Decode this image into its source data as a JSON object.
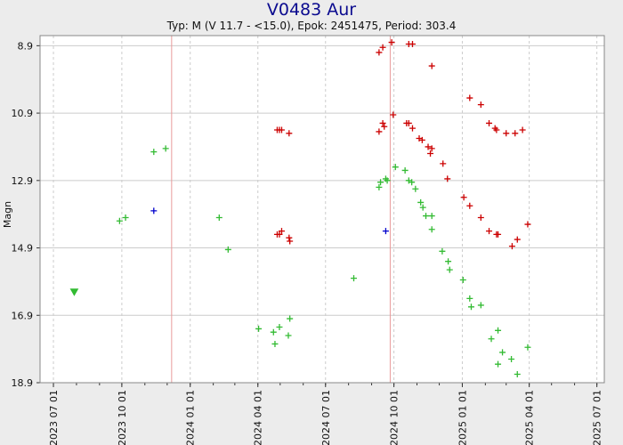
{
  "title": "V0483 Aur",
  "subtitle": "Typ: M (V 11.7 - <15.0), Epok: 2451475, Period: 303.4",
  "chart_data": {
    "type": "scatter",
    "ylabel": "Magn",
    "xlabel": "",
    "ylim": [
      8.6,
      18.9
    ],
    "y_inverted": true,
    "yticks": [
      8.9,
      10.9,
      12.9,
      14.9,
      16.9,
      18.9
    ],
    "xticks": [
      "2023 07 01",
      "2023 10 01",
      "2024 01 01",
      "2024 04 01",
      "2024 07 01",
      "2024 10 01",
      "2025 01 01",
      "2025 04 01",
      "2025 07 01"
    ],
    "xlim": [
      "2023-06-13",
      "2025-07-11"
    ],
    "grid": true,
    "vlines": [
      "2023-12-07",
      "2024-09-26"
    ],
    "colors": {
      "red": "#cc0000",
      "green": "#33bb33",
      "blue": "#0000cc",
      "vline": "#e89a9a",
      "grid": "#cccccc"
    },
    "series": [
      {
        "color": "red",
        "marker": "plus",
        "points": [
          [
            "2024-04-27",
            11.4
          ],
          [
            "2024-04-30",
            11.4
          ],
          [
            "2024-05-03",
            11.4
          ],
          [
            "2024-05-13",
            11.5
          ],
          [
            "2024-04-27",
            14.5
          ],
          [
            "2024-04-30",
            14.5
          ],
          [
            "2024-05-03",
            14.4
          ],
          [
            "2024-05-13",
            14.6
          ],
          [
            "2024-05-14",
            14.7
          ],
          [
            "2024-09-11",
            9.1
          ],
          [
            "2024-09-16",
            8.95
          ],
          [
            "2024-09-28",
            8.8
          ],
          [
            "2024-10-21",
            8.85
          ],
          [
            "2024-10-26",
            8.85
          ],
          [
            "2024-11-21",
            9.5
          ],
          [
            "2024-09-11",
            11.45
          ],
          [
            "2024-09-16",
            11.2
          ],
          [
            "2024-09-18",
            11.3
          ],
          [
            "2024-09-30",
            10.95
          ],
          [
            "2024-10-18",
            11.2
          ],
          [
            "2024-10-21",
            11.2
          ],
          [
            "2024-10-26",
            11.35
          ],
          [
            "2024-11-04",
            11.65
          ],
          [
            "2024-11-08",
            11.7
          ],
          [
            "2024-11-16",
            11.9
          ],
          [
            "2024-11-19",
            12.1
          ],
          [
            "2024-11-21",
            11.95
          ],
          [
            "2024-12-06",
            12.4
          ],
          [
            "2024-12-12",
            12.85
          ],
          [
            "2025-01-03",
            13.4
          ],
          [
            "2025-01-11",
            13.65
          ],
          [
            "2025-01-11",
            10.45
          ],
          [
            "2025-01-26",
            10.65
          ],
          [
            "2025-02-06",
            11.2
          ],
          [
            "2025-02-14",
            11.35
          ],
          [
            "2025-02-16",
            11.4
          ],
          [
            "2025-02-29",
            11.5
          ],
          [
            "2025-03-13",
            11.5
          ],
          [
            "2025-03-23",
            11.4
          ],
          [
            "2025-01-26",
            14.0
          ],
          [
            "2025-02-06",
            14.4
          ],
          [
            "2025-02-16",
            14.5
          ],
          [
            "2025-02-18",
            14.5
          ],
          [
            "2025-03-09",
            14.85
          ],
          [
            "2025-03-16",
            14.65
          ],
          [
            "2025-03-30",
            14.2
          ]
        ]
      },
      {
        "color": "green",
        "marker": "plus",
        "points": [
          [
            "2023-09-28",
            14.1
          ],
          [
            "2023-10-06",
            14.0
          ],
          [
            "2023-11-13",
            12.05
          ],
          [
            "2023-11-29",
            11.95
          ],
          [
            "2024-02-09",
            14.0
          ],
          [
            "2024-02-21",
            14.95
          ],
          [
            "2024-04-02",
            17.3
          ],
          [
            "2024-04-22",
            17.4
          ],
          [
            "2024-04-24",
            17.75
          ],
          [
            "2024-04-30",
            17.25
          ],
          [
            "2024-05-12",
            17.5
          ],
          [
            "2024-05-14",
            17.0
          ],
          [
            "2024-08-08",
            15.8
          ],
          [
            "2024-09-11",
            13.1
          ],
          [
            "2024-09-13",
            12.95
          ],
          [
            "2024-09-20",
            12.85
          ],
          [
            "2024-09-22",
            12.9
          ],
          [
            "2024-10-03",
            12.5
          ],
          [
            "2024-10-16",
            12.6
          ],
          [
            "2024-10-21",
            12.9
          ],
          [
            "2024-10-25",
            12.95
          ],
          [
            "2024-10-30",
            13.15
          ],
          [
            "2024-11-06",
            13.55
          ],
          [
            "2024-11-09",
            13.7
          ],
          [
            "2024-11-13",
            13.95
          ],
          [
            "2024-11-21",
            13.95
          ],
          [
            "2024-11-21",
            14.35
          ],
          [
            "2024-12-05",
            15.0
          ],
          [
            "2024-12-13",
            15.3
          ],
          [
            "2024-12-15",
            15.55
          ],
          [
            "2025-01-02",
            15.85
          ],
          [
            "2025-01-11",
            16.4
          ],
          [
            "2025-01-13",
            16.65
          ],
          [
            "2025-01-26",
            16.6
          ],
          [
            "2025-02-09",
            17.6
          ],
          [
            "2025-02-18",
            17.35
          ],
          [
            "2025-02-24",
            18.0
          ],
          [
            "2025-02-18",
            18.35
          ],
          [
            "2025-03-08",
            18.2
          ],
          [
            "2025-03-16",
            18.65
          ],
          [
            "2025-03-30",
            17.85
          ]
        ]
      },
      {
        "color": "blue",
        "marker": "plus",
        "points": [
          [
            "2023-11-13",
            13.8
          ],
          [
            "2024-09-20",
            14.4
          ]
        ]
      },
      {
        "color": "green",
        "marker": "triangle-down",
        "points": [
          [
            "2023-07-29",
            16.2
          ]
        ]
      }
    ]
  }
}
